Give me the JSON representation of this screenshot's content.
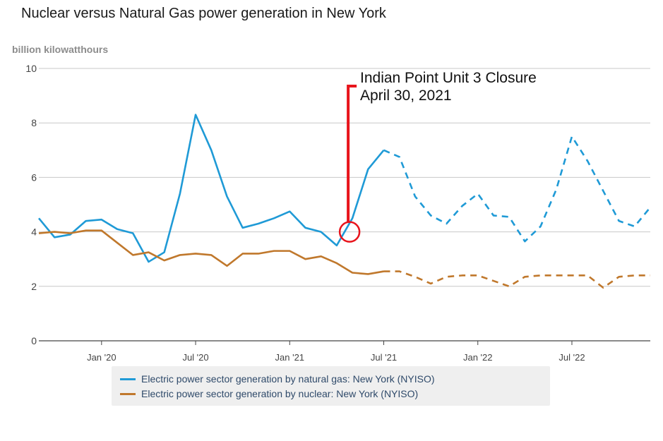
{
  "title": "Nuclear versus Natural Gas power generation in New York",
  "units_label": "billion kilowatthours",
  "colors": {
    "gas": "#1f9ad6",
    "nuclear": "#c0782c",
    "annotation": "#e8141c",
    "grid": "#c8c8c8",
    "axis": "#444444"
  },
  "annotation": {
    "line1": "Indian Point Unit 3 Closure",
    "line2": "April 30, 2021",
    "date": "2021-05",
    "value": 4.0
  },
  "chart_data": {
    "type": "line",
    "title": "Nuclear versus Natural Gas power generation in New York",
    "ylabel": "billion kilowatthours",
    "xlabel": "",
    "ylim": [
      0,
      10
    ],
    "yticks": [
      "0",
      "2",
      "4",
      "6",
      "8",
      "10"
    ],
    "xticks": [
      {
        "label": "Jan '20",
        "date": "2020-01"
      },
      {
        "label": "Jul '20",
        "date": "2020-07"
      },
      {
        "label": "Jan '21",
        "date": "2021-01"
      },
      {
        "label": "Jul '21",
        "date": "2021-07"
      },
      {
        "label": "Jan '22",
        "date": "2022-01"
      },
      {
        "label": "Jul '22",
        "date": "2022-07"
      }
    ],
    "grid": true,
    "legend_position": "bottom",
    "x": [
      "2019-09",
      "2019-10",
      "2019-11",
      "2019-12",
      "2020-01",
      "2020-02",
      "2020-03",
      "2020-04",
      "2020-05",
      "2020-06",
      "2020-07",
      "2020-08",
      "2020-09",
      "2020-10",
      "2020-11",
      "2020-12",
      "2021-01",
      "2021-02",
      "2021-03",
      "2021-04",
      "2021-05",
      "2021-06",
      "2021-07",
      "2021-08",
      "2021-09",
      "2021-10",
      "2021-11",
      "2021-12",
      "2022-01",
      "2022-02",
      "2022-03",
      "2022-04",
      "2022-05",
      "2022-06",
      "2022-07",
      "2022-08",
      "2022-09",
      "2022-10",
      "2022-11",
      "2022-12"
    ],
    "forecast_start": "2021-07",
    "series": [
      {
        "name": "Electric power sector generation by natural gas: New York (NYISO)",
        "values": [
          4.5,
          3.8,
          3.9,
          4.4,
          4.45,
          4.1,
          3.95,
          2.9,
          3.25,
          5.4,
          8.3,
          7.0,
          5.3,
          4.15,
          4.3,
          4.5,
          4.75,
          4.15,
          4.0,
          3.5,
          4.5,
          6.3,
          7.0,
          6.75,
          5.3,
          4.6,
          4.3,
          4.95,
          5.4,
          4.6,
          4.55,
          3.65,
          4.2,
          5.55,
          7.5,
          6.6,
          5.5,
          4.4,
          4.2,
          4.9
        ]
      },
      {
        "name": "Electric power sector generation by nuclear: New York (NYISO)",
        "values": [
          3.95,
          4.0,
          3.95,
          4.05,
          4.05,
          3.6,
          3.15,
          3.25,
          2.95,
          3.15,
          3.2,
          3.15,
          2.75,
          3.2,
          3.2,
          3.3,
          3.3,
          3.0,
          3.1,
          2.85,
          2.5,
          2.45,
          2.55,
          2.55,
          2.35,
          2.1,
          2.35,
          2.4,
          2.4,
          2.2,
          2.0,
          2.35,
          2.4,
          2.4,
          2.4,
          2.4,
          1.95,
          2.35,
          2.4,
          2.4
        ]
      }
    ]
  }
}
